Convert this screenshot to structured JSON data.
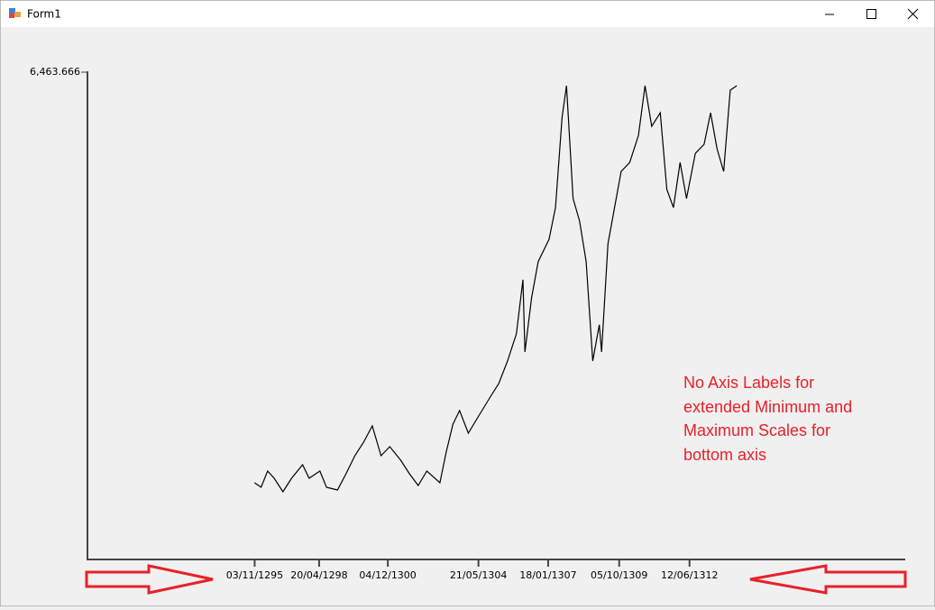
{
  "window": {
    "title": "Form1"
  },
  "chart_data": {
    "type": "line",
    "annotation": "No Axis Labels for extended Minimum and Maximum Scales for bottom axis",
    "xlim": [
      "1289-06-15",
      "1320-08-25"
    ],
    "xticks": [
      {
        "value": "1295-11-03",
        "label": "03/11/1295"
      },
      {
        "value": "1298-04-20",
        "label": "20/04/1298"
      },
      {
        "value": "1300-12-04",
        "label": "04/12/1300"
      },
      {
        "value": "1304-05-21",
        "label": "21/05/1304"
      },
      {
        "value": "1307-01-18",
        "label": "18/01/1307"
      },
      {
        "value": "1309-10-05",
        "label": "05/10/1309"
      },
      {
        "value": "1312-06-12",
        "label": "12/06/1312"
      }
    ],
    "ylim": [
      0,
      6463.666
    ],
    "yticks": [
      {
        "value": 6463.666,
        "label": "6,463.666"
      }
    ],
    "x": [
      "1295-11-01",
      "1296-02-01",
      "1296-05-01",
      "1296-08-01",
      "1296-12-01",
      "1297-04-01",
      "1297-09-01",
      "1297-12-01",
      "1298-05-01",
      "1298-08-01",
      "1299-01-01",
      "1299-05-01",
      "1299-09-01",
      "1300-01-01",
      "1300-05-01",
      "1300-09-01",
      "1301-01-01",
      "1301-06-01",
      "1301-10-01",
      "1302-02-01",
      "1302-06-01",
      "1302-12-01",
      "1303-03-01",
      "1303-06-01",
      "1303-09-01",
      "1304-01-01",
      "1304-06-01",
      "1304-11-01",
      "1305-03-01",
      "1305-07-01",
      "1305-11-01",
      "1306-02-01",
      "1306-03-01",
      "1306-06-01",
      "1306-09-01",
      "1307-02-01",
      "1307-05-01",
      "1307-08-01",
      "1307-10-01",
      "1308-01-01",
      "1308-04-01",
      "1308-07-01",
      "1308-10-01",
      "1309-01-01",
      "1309-02-01",
      "1309-05-01",
      "1309-08-01",
      "1309-11-01",
      "1310-03-01",
      "1310-07-01",
      "1310-10-01",
      "1311-01-01",
      "1311-05-01",
      "1311-08-01",
      "1311-11-01",
      "1312-02-01",
      "1312-05-01",
      "1312-09-01",
      "1313-01-01",
      "1313-04-01",
      "1313-07-01",
      "1313-10-01",
      "1314-01-01",
      "1314-04-01"
    ],
    "series": [
      {
        "color": "#000000",
        "values": [
          1017,
          958,
          1173,
          1077,
          898,
          1077,
          1257,
          1077,
          1173,
          958,
          922,
          1137,
          1377,
          1556,
          1772,
          1377,
          1496,
          1317,
          1137,
          982,
          1173,
          1017,
          1436,
          1796,
          1975,
          1676,
          1915,
          2155,
          2334,
          2633,
          2993,
          3711,
          2753,
          3472,
          3950,
          4249,
          4668,
          5865,
          6284,
          4788,
          4489,
          3950,
          2633,
          3113,
          2753,
          4189,
          4668,
          5147,
          5267,
          5626,
          6284,
          5746,
          5925,
          4907,
          4668,
          5267,
          4788,
          5387,
          5506,
          5925,
          5446,
          5147,
          6224,
          6284
        ]
      }
    ]
  }
}
